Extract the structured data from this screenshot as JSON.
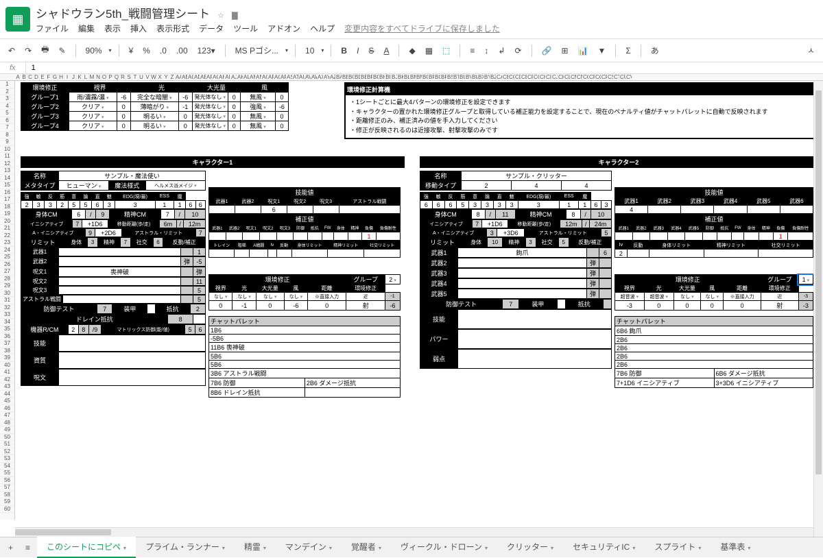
{
  "doc_title": "シャドウラン5th_戦闘管理シート",
  "menus": [
    "ファイル",
    "編集",
    "表示",
    "挿入",
    "表示形式",
    "データ",
    "ツール",
    "アドオン",
    "ヘルプ"
  ],
  "save_status": "変更内容をすべてドライブに保存しました",
  "toolbar": {
    "zoom": "90%",
    "currency": "¥",
    "decimals": ".0",
    "decimals2": ".00",
    "format": "123▾",
    "font": "MS Pゴシ...",
    "size": "10",
    "sigma": "Σ",
    "lang": "あ"
  },
  "formula_value": "1",
  "col_letters": [
    "A",
    "B",
    "C",
    "D",
    "E",
    "F",
    "G",
    "H",
    "I",
    "J",
    "K",
    "L",
    "M",
    "N",
    "O",
    "P",
    "Q",
    "R",
    "S",
    "T",
    "U",
    "V",
    "W",
    "X",
    "Y",
    "Z",
    "AA",
    "AB",
    "AC",
    "AD",
    "AE",
    "AF",
    "AG",
    "AH",
    "AI",
    "AJ",
    "AK",
    "AL",
    "AM",
    "AN",
    "AO",
    "AP",
    "AQ",
    "AR",
    "AS",
    "AT",
    "AU",
    "AV",
    "AW",
    "AX",
    "AY",
    "AZ",
    "BA",
    "BB",
    "BC",
    "BD",
    "BE",
    "BF",
    "BG",
    "BH",
    "BI",
    "BJ",
    "BK",
    "BL",
    "BM",
    "BN",
    "BO",
    "BP",
    "BQ",
    "BR",
    "BS",
    "BT",
    "BU",
    "BV",
    "BW",
    "BX",
    "BY",
    "BZ",
    "CA",
    "CB",
    "CC",
    "CD",
    "CE",
    "CF",
    "CG",
    "CH",
    "CI",
    "CJ",
    "CK",
    "CL",
    "CM",
    "CN",
    "CO",
    "CP",
    "CQ",
    "CR",
    "CS",
    "CT",
    "CU",
    "CV"
  ],
  "env_header": "環境修正",
  "env_cols": [
    "視界",
    "光",
    "大光量",
    "風"
  ],
  "env_rows": [
    {
      "g": "グループ1",
      "v": "雨/濃霧/濃",
      "vn": -6,
      "l": "完全な暗闇",
      "ln": -6,
      "gl": "発光体なし",
      "gn": 0,
      "w": "無風",
      "wn": 0
    },
    {
      "g": "グループ2",
      "v": "クリア",
      "vn": 0,
      "l": "薄暗がり",
      "ln": -1,
      "gl": "発光体なし",
      "gn": 0,
      "w": "強風",
      "wn": -6
    },
    {
      "g": "グループ3",
      "v": "クリア",
      "vn": 0,
      "l": "明るい",
      "ln": 0,
      "gl": "発光体なし",
      "gn": 0,
      "w": "無風",
      "wn": 0
    },
    {
      "g": "グループ4",
      "v": "クリア",
      "vn": 0,
      "l": "明るい",
      "ln": 0,
      "gl": "発光体なし",
      "gn": 0,
      "w": "無風",
      "wn": 0
    }
  ],
  "calc_header": "環境修正計算機",
  "calc_notes": [
    "・1シートごとに最大4パターンの環境修正を設定できます",
    "・キャラクターの置かれた環境修正グループと取得している補正能力を設定することで、現在のペナルティ値がチャットパレットに自動で反映されます",
    "・距離修正のみ、補正済みの値を手入力してください",
    "・修正が反映されるのは近接攻撃、射撃攻撃のみです"
  ],
  "char1": {
    "title": "キャラクター1",
    "name_label": "名称",
    "name": "サンプル・魔法使い",
    "meta_label": "メタタイプ",
    "meta": "ヒューマン",
    "magic_label": "魔法様式",
    "magic": "ヘルメス派メイジ",
    "attrs": [
      "強",
      "敏",
      "反",
      "筋",
      "意",
      "論",
      "直",
      "魅",
      "EDG(現/最)",
      "ESS",
      "魔"
    ],
    "attr_vals": [
      "2",
      "3",
      "3",
      "2",
      "5",
      "5",
      "6",
      "3",
      "3",
      "1",
      "1",
      "6",
      "6"
    ],
    "body_cm": "身体CM",
    "body_vals": [
      "6",
      "/",
      "9"
    ],
    "mental_cm": "精神CM",
    "mental_vals": [
      "7",
      "/",
      "10"
    ],
    "init": "イニシアティブ",
    "init_vals": [
      "7",
      "+1D6"
    ],
    "move": "移動距離(歩/走)",
    "move_vals": [
      "6m",
      "/",
      "12m"
    ],
    "ainit": "A・イニシアティブ",
    "ainit_vals": [
      "9",
      "+2D6"
    ],
    "alimit": "アストラル・リミット",
    "alimit_val": "7",
    "limit": "リミット",
    "limits": [
      "身体",
      "3",
      "精神",
      "7",
      "社交",
      "6",
      "反動/補正"
    ],
    "weapons": [
      "武器1",
      "武器2",
      "呪文1",
      "呪文2",
      "呪文3",
      "アストラル戦闘"
    ],
    "spell1": "喪神破",
    "right_vals": [
      "1",
      "2",
      "1",
      "-5",
      "弾",
      "11",
      "5",
      "5",
      "3",
      "2"
    ],
    "def": "防御テスト",
    "def_val": "7",
    "armor": "装甲",
    "resist": "抵抗",
    "drain": "ドレイン抵抗",
    "drain_val": "8",
    "device": "機器R/CM",
    "device_vals": [
      "2",
      "8",
      "/9"
    ],
    "matrix": "マトリックス防御(能/値)",
    "matrix_vals": [
      "5",
      "6"
    ],
    "sections": [
      "技能",
      "資質",
      "呪文"
    ],
    "skill_header": "技能値",
    "skill_cols": [
      "武器1",
      "武器2",
      "呪文1",
      "呪文2",
      "呪文3",
      "アストラル戦闘"
    ],
    "skill_val": "6",
    "mod_header": "補正値",
    "mod_cols": [
      "武器1",
      "武器2",
      "呪文1",
      "呪文2",
      "呪文3",
      "防御",
      "抵抗",
      "FW",
      "身体",
      "精神",
      "負傷",
      "負傷耐性"
    ],
    "mod_red": "1",
    "drain_row": [
      "トレイン",
      "階梯",
      "A戦闘",
      "Iv",
      "反動",
      "身体リミット",
      "精神リミット",
      "社交リミット"
    ],
    "env_mod": "環境修正",
    "group": "グループ",
    "group_val": "2",
    "env_cols2": [
      "視界",
      "光",
      "大光量",
      "風",
      "距離",
      "環境修正"
    ],
    "env_r1": [
      "なし",
      "なし",
      "なし",
      "なし",
      "※直接入力",
      "近",
      "-1"
    ],
    "env_r2": [
      "0",
      "-1",
      "0",
      "-6",
      "0",
      "射",
      "-6"
    ],
    "chat": "チャットパレット",
    "chat_rows": [
      "1B6",
      "-5B6",
      "11B6 喪神破",
      "5B6",
      "5B6",
      "3B6 アストラル戦闘"
    ],
    "chat_pair": [
      [
        "7B6 防御",
        "2B6 ダメージ抵抗"
      ],
      [
        "8B6 ドレイン抵抗",
        ""
      ]
    ]
  },
  "char2": {
    "title": "キャラクター2",
    "name_label": "名称",
    "name": "サンプル・クリッター",
    "move_label": "移動タイプ",
    "move_vals": [
      "2",
      "4",
      "4"
    ],
    "attrs": [
      "強",
      "敏",
      "反",
      "筋",
      "意",
      "論",
      "直",
      "魅",
      "EDG(現/最)",
      "ESS",
      "魔"
    ],
    "attr_vals": [
      "6",
      "6",
      "6",
      "5",
      "3",
      "3",
      "3",
      "3",
      "3",
      "1",
      "1",
      "6",
      "3"
    ],
    "body_cm": "身体CM",
    "body_vals": [
      "8",
      "/",
      "11"
    ],
    "mental_cm": "精神CM",
    "mental_vals": [
      "8",
      "/",
      "10"
    ],
    "init": "イニシアティブ",
    "init_vals": [
      "7",
      "+1D6"
    ],
    "move2": "移動距離(歩/走)",
    "move2_vals": [
      "12m",
      "/",
      "24m"
    ],
    "ainit": "A・イニシアティブ",
    "ainit_vals": [
      "3",
      "+3D6"
    ],
    "alimit": "アストラル・リミット",
    "alimit_val": "5",
    "limit": "リミット",
    "limits": [
      "身体",
      "10",
      "精神",
      "3",
      "社交",
      "5",
      "反動/補正"
    ],
    "weapons": [
      "武器1",
      "武器2",
      "武器3",
      "武器4",
      "武器5"
    ],
    "w1": "鉤爪",
    "w1v": "6",
    "def": "防御テスト",
    "def_val": "7",
    "armor": "装甲",
    "resist": "抵抗",
    "sections": [
      "技能",
      "パワー",
      "弱点"
    ],
    "skill_header": "技能値",
    "skill_cols": [
      "武器1",
      "武器2",
      "武器3",
      "武器4",
      "武器5",
      "武器6"
    ],
    "skill_val": "4",
    "mod_header": "補正値",
    "mod_cols": [
      "武器1",
      "武器2",
      "武器3",
      "武器4",
      "武器5",
      "防御",
      "抵抗",
      "FW",
      "身体",
      "精神",
      "負傷",
      "負傷耐性"
    ],
    "mod_red": "1",
    "drain_row": [
      "Iv",
      "反動",
      "身体リミット",
      "精神リミット",
      "社交リミット"
    ],
    "drain_val": "2",
    "env_mod": "環境修正",
    "group": "グループ",
    "group_val": "1",
    "env_cols2": [
      "視界",
      "光",
      "大光量",
      "風",
      "距離",
      "環境修正"
    ],
    "env_r1": [
      "超音波",
      "超音波",
      "なし",
      "なし",
      "※直接入力",
      "近",
      "-3"
    ],
    "env_r2": [
      "-3",
      "0",
      "0",
      "0",
      "0",
      "射",
      "-3"
    ],
    "chat": "チャットパレット",
    "chat_rows": [
      "6B6 鉤爪",
      "2B6",
      "2B6",
      "2B6",
      "2B6"
    ],
    "chat_pair": [
      [
        "7B6 防御",
        "6B6 ダメージ抵抗"
      ],
      [
        "7+1D6 イニシアティブ",
        "3+3D6 イニシアティブ"
      ]
    ]
  },
  "tabs": [
    "このシートにコピペ",
    "プライム・ランナー",
    "精霊",
    "マンデイン",
    "覚醒者",
    "ヴィークル・ドローン",
    "クリッター",
    "セキュリティIC",
    "スプライト",
    "基準表"
  ],
  "active_tab": 0
}
